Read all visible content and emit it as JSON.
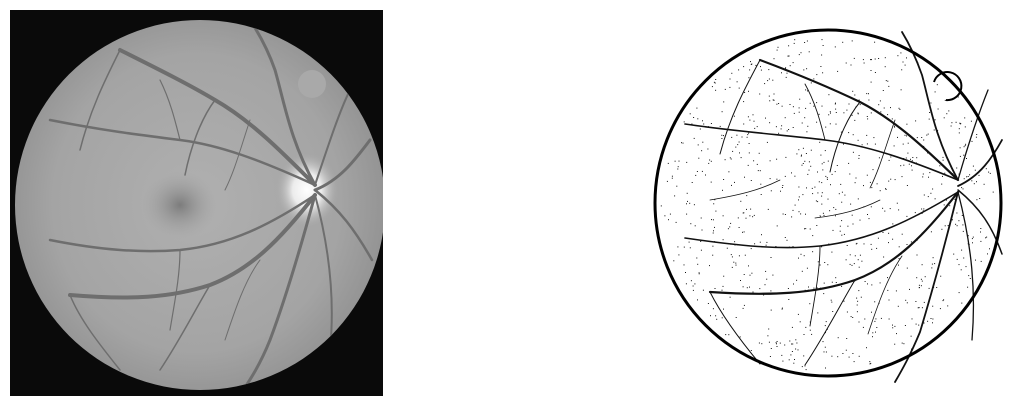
{
  "figure": {
    "panels": [
      {
        "id": "fundus-grayscale",
        "kind": "grayscale retinal fundus photograph",
        "background_color": "#0a0a0a",
        "disc_color": "#a8a8a8",
        "vessel_color": "#6f6f6f",
        "optic_disc_color": "#f2f2f2",
        "fovea_color": "#8a8a8a"
      },
      {
        "id": "vessel-segmentation",
        "kind": "binary vessel segmentation map",
        "background_color": "#ffffff",
        "vessel_color": "#111111",
        "boundary_color": "#000000"
      }
    ]
  }
}
